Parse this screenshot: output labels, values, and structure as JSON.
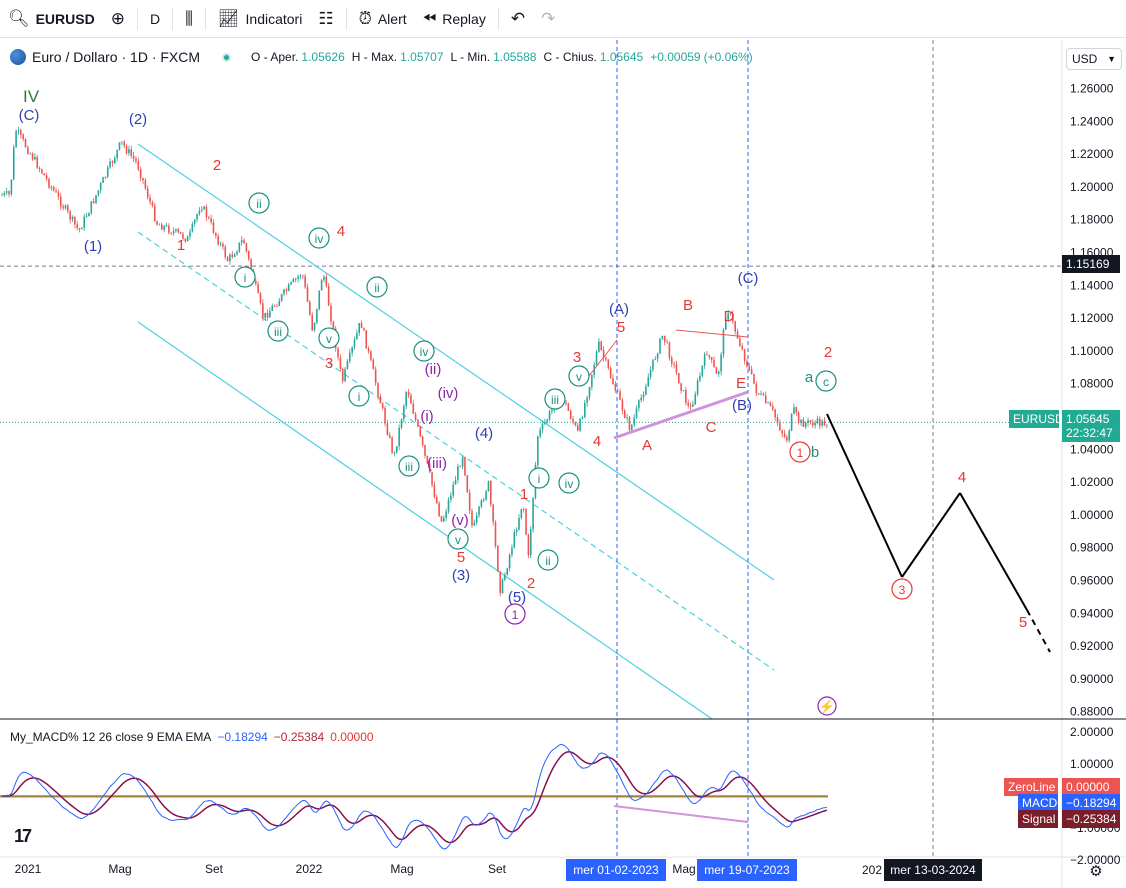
{
  "toolbar": {
    "symbol": "EURUSD",
    "interval": "D",
    "indicators_label": "Indicatori",
    "alert_label": "Alert",
    "replay_label": "Replay"
  },
  "legend": {
    "title": "Euro / Dollaro · 1D · FXCM",
    "open_label": "O - Aper.",
    "open": "1.05626",
    "high_label": "H - Max.",
    "high": "1.05707",
    "low_label": "L - Min.",
    "low": "1.05588",
    "close_label": "C - Chius.",
    "close": "1.05645",
    "change": "+0.00059",
    "change_pct": "(+0.06%)"
  },
  "currency_select": "USD",
  "price_tags": {
    "hline_price": "1.15169",
    "symbol_label": "EURUSD",
    "last_price": "1.05645",
    "countdown": "22:32:47",
    "zeroline_label": "ZeroLine",
    "zeroline_value": "0.00000",
    "macd_label": "MACD",
    "macd_value": "−0.18294",
    "signal_label": "Signal",
    "signal_value": "−0.25384"
  },
  "macd_legend": {
    "name": "My_MACD% 12 26 close 9 EMA EMA",
    "v1": "−0.18294",
    "v2": "−0.25384",
    "v3": "0.00000"
  },
  "x_tags": {
    "date1": "mer 01-02-2023",
    "date2": "mer 19-07-2023",
    "date3": "mer 13-03-2024",
    "partial_year": "202"
  },
  "colors": {
    "up": "#26a69a",
    "down": "#ef5350",
    "channel": "#4dd0e1",
    "wave_blue": "#2f3fb5",
    "wave_red": "#e53935",
    "wave_teal": "#1a8f7e",
    "wave_purple": "#8e24aa",
    "wave_green": "#2e7d32",
    "macd_line": "#2962ff",
    "signal_line": "#880e4f",
    "zero_line": "#ff5722"
  },
  "chart_data": {
    "type": "candlestick",
    "symbol": "EURUSD",
    "interval": "1D",
    "y_axis": {
      "min": 0.88,
      "max": 1.26,
      "ticks": [
        "1.26000",
        "1.24000",
        "1.22000",
        "1.20000",
        "1.18000",
        "1.16000",
        "1.14000",
        "1.12000",
        "1.10000",
        "1.08000",
        "1.06000",
        "1.04000",
        "1.02000",
        "1.00000",
        "0.98000",
        "0.96000",
        "0.94000",
        "0.92000",
        "0.90000",
        "0.88000"
      ]
    },
    "x_axis": {
      "ticks": [
        "2021",
        "Mag",
        "Set",
        "2022",
        "Mag",
        "Set",
        "Mag"
      ]
    },
    "price_path": [
      {
        "date": "2021-01-01",
        "price": 1.195
      },
      {
        "date": "2021-01-08",
        "price": 1.235
      },
      {
        "date": "2021-03-31",
        "price": 1.173
      },
      {
        "date": "2021-05-25",
        "price": 1.227
      },
      {
        "date": "2021-06-15",
        "price": 1.214
      },
      {
        "date": "2021-07-10",
        "price": 1.178
      },
      {
        "date": "2021-08-20",
        "price": 1.168
      },
      {
        "date": "2021-09-05",
        "price": 1.19
      },
      {
        "date": "2021-10-10",
        "price": 1.155
      },
      {
        "date": "2021-10-30",
        "price": 1.168
      },
      {
        "date": "2021-11-25",
        "price": 1.12
      },
      {
        "date": "2022-01-14",
        "price": 1.148
      },
      {
        "date": "2022-01-28",
        "price": 1.112
      },
      {
        "date": "2022-02-10",
        "price": 1.149
      },
      {
        "date": "2022-03-07",
        "price": 1.081
      },
      {
        "date": "2022-03-31",
        "price": 1.118
      },
      {
        "date": "2022-05-13",
        "price": 1.035
      },
      {
        "date": "2022-05-30",
        "price": 1.078
      },
      {
        "date": "2022-07-14",
        "price": 0.995
      },
      {
        "date": "2022-08-10",
        "price": 1.037
      },
      {
        "date": "2022-08-23",
        "price": 0.99
      },
      {
        "date": "2022-09-12",
        "price": 1.02
      },
      {
        "date": "2022-09-28",
        "price": 0.953
      },
      {
        "date": "2022-10-27",
        "price": 1.009
      },
      {
        "date": "2022-11-03",
        "price": 0.973
      },
      {
        "date": "2022-11-15",
        "price": 1.048
      },
      {
        "date": "2022-12-15",
        "price": 1.074
      },
      {
        "date": "2023-01-06",
        "price": 1.05
      },
      {
        "date": "2023-02-02",
        "price": 1.104
      },
      {
        "date": "2023-03-15",
        "price": 1.052
      },
      {
        "date": "2023-04-26",
        "price": 1.11
      },
      {
        "date": "2023-05-31",
        "price": 1.063
      },
      {
        "date": "2023-06-22",
        "price": 1.1
      },
      {
        "date": "2023-07-06",
        "price": 1.083
      },
      {
        "date": "2023-07-18",
        "price": 1.127
      },
      {
        "date": "2023-08-25",
        "price": 1.076
      },
      {
        "date": "2023-09-15",
        "price": 1.063
      },
      {
        "date": "2023-10-03",
        "price": 1.045
      },
      {
        "date": "2023-10-12",
        "price": 1.064
      },
      {
        "date": "2023-10-20",
        "price": 1.056
      }
    ],
    "forecast_path": [
      {
        "price": 1.056
      },
      {
        "label": "3",
        "price": 0.958
      },
      {
        "label": "4",
        "price": 1.009
      },
      {
        "label": "5",
        "price": 0.938
      },
      {
        "price": 0.912
      }
    ],
    "horizontal_line": 1.15169,
    "vertical_lines": [
      "mer 01-02-2023",
      "mer 19-07-2023",
      "mer 13-03-2024"
    ],
    "wave_labels": [
      {
        "t": "IV",
        "cat": "green"
      },
      {
        "t": "(C)",
        "cat": "blue"
      },
      {
        "t": "(2)",
        "cat": "blue"
      },
      {
        "t": "(1)",
        "cat": "blue"
      },
      {
        "t": "2",
        "cat": "red"
      },
      {
        "t": "1",
        "cat": "red"
      },
      {
        "t": "ii",
        "cat": "teal"
      },
      {
        "t": "iv",
        "cat": "teal"
      },
      {
        "t": "4",
        "cat": "red"
      },
      {
        "t": "i",
        "cat": "teal"
      },
      {
        "t": "ii",
        "cat": "teal"
      },
      {
        "t": "iii",
        "cat": "teal"
      },
      {
        "t": "v",
        "cat": "teal"
      },
      {
        "t": "3",
        "cat": "red"
      },
      {
        "t": "iv",
        "cat": "teal"
      },
      {
        "t": "(ii)",
        "cat": "purple"
      },
      {
        "t": "(iv)",
        "cat": "purple"
      },
      {
        "t": "(i)",
        "cat": "purple"
      },
      {
        "t": "i",
        "cat": "teal"
      },
      {
        "t": "iii",
        "cat": "teal"
      },
      {
        "t": "(iii)",
        "cat": "purple"
      },
      {
        "t": "(4)",
        "cat": "blue"
      },
      {
        "t": "(v)",
        "cat": "purple"
      },
      {
        "t": "v",
        "cat": "teal"
      },
      {
        "t": "5",
        "cat": "red"
      },
      {
        "t": "(3)",
        "cat": "blue"
      },
      {
        "t": "1",
        "cat": "red"
      },
      {
        "t": "i",
        "cat": "teal"
      },
      {
        "t": "iv",
        "cat": "teal"
      },
      {
        "t": "ii",
        "cat": "teal"
      },
      {
        "t": "2",
        "cat": "red"
      },
      {
        "t": "(5)",
        "cat": "blue"
      },
      {
        "t": "1",
        "cat": "purple"
      },
      {
        "t": "iii",
        "cat": "teal"
      },
      {
        "t": "v",
        "cat": "teal"
      },
      {
        "t": "3",
        "cat": "red"
      },
      {
        "t": "4",
        "cat": "red"
      },
      {
        "t": "(A)",
        "cat": "blue"
      },
      {
        "t": "5",
        "cat": "red"
      },
      {
        "t": "A",
        "cat": "red"
      },
      {
        "t": "B",
        "cat": "red"
      },
      {
        "t": "C",
        "cat": "red"
      },
      {
        "t": "D",
        "cat": "red"
      },
      {
        "t": "E",
        "cat": "red"
      },
      {
        "t": "(B)",
        "cat": "blue"
      },
      {
        "t": "(C)",
        "cat": "blue"
      },
      {
        "t": "2",
        "cat": "red"
      },
      {
        "t": "a",
        "cat": "teal"
      },
      {
        "t": "c",
        "cat": "teal"
      },
      {
        "t": "1",
        "cat": "red"
      },
      {
        "t": "b",
        "cat": "teal"
      },
      {
        "t": "3",
        "cat": "red"
      },
      {
        "t": "4",
        "cat": "red"
      },
      {
        "t": "5",
        "cat": "red"
      }
    ],
    "macd": {
      "y_ticks": [
        "2.00000",
        "1.00000",
        "0.00000",
        "−1.00000",
        "−2.00000"
      ],
      "ylim": [
        -2,
        2
      ],
      "macd_last": -0.18294,
      "signal_last": -0.25384,
      "zero_line": 0.0
    }
  }
}
